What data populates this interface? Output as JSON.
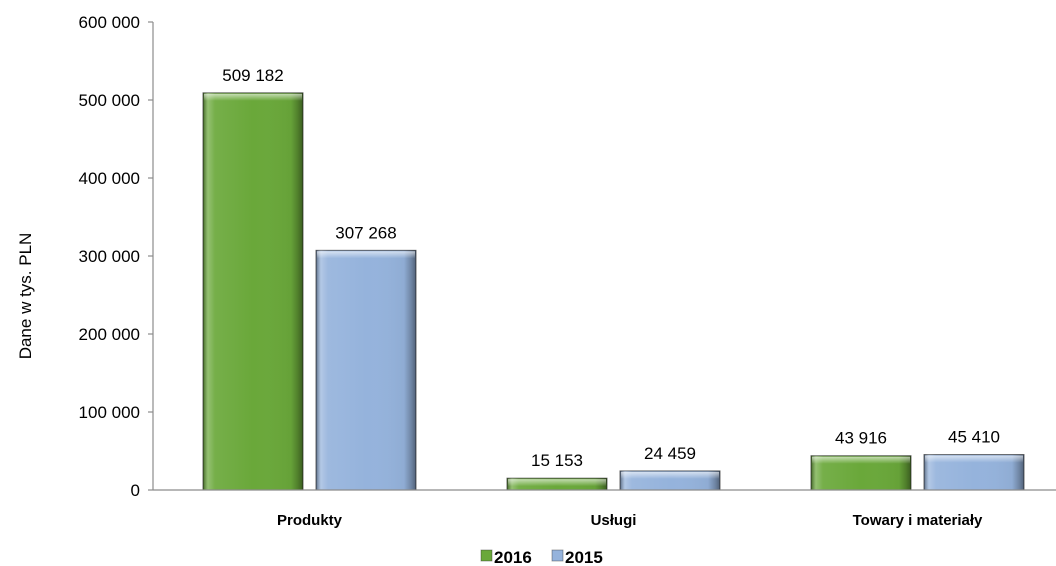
{
  "chart_data": {
    "type": "bar",
    "ylabel": "Dane w tys. PLN",
    "categories": [
      "Produkty",
      "Usługi",
      "Towary i materiały"
    ],
    "series": [
      {
        "name": "2016",
        "color": "#6aa83a",
        "values": [
          509182,
          15153,
          43916
        ],
        "data_labels": [
          "509 182",
          "15 153",
          "43 916"
        ]
      },
      {
        "name": "2015",
        "color": "#95b3dc",
        "values": [
          307268,
          24459,
          45410
        ],
        "data_labels": [
          "307 268",
          "24 459",
          "45 410"
        ]
      }
    ],
    "ylim": [
      0,
      600000
    ],
    "yticks": [
      {
        "value": 0,
        "label": "0"
      },
      {
        "value": 100000,
        "label": "100 000"
      },
      {
        "value": 200000,
        "label": "200 000"
      },
      {
        "value": 300000,
        "label": "300 000"
      },
      {
        "value": 400000,
        "label": "400 000"
      },
      {
        "value": 500000,
        "label": "500 000"
      },
      {
        "value": 600000,
        "label": "600 000"
      }
    ],
    "grid": false,
    "legend": "bottom"
  }
}
